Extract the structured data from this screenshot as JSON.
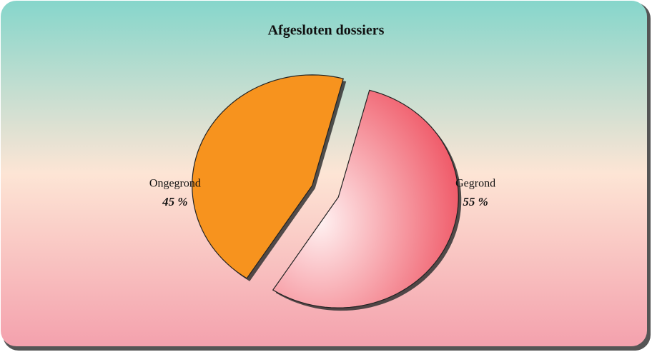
{
  "chart_data": {
    "type": "pie",
    "title": "Afgesloten dossiers",
    "categories": [
      "Ongegrond",
      "Gegrond"
    ],
    "values": [
      45,
      55
    ],
    "value_labels": [
      "45 %",
      "55 %"
    ],
    "colors": [
      "#f7931e",
      "#ee4a5a"
    ]
  }
}
